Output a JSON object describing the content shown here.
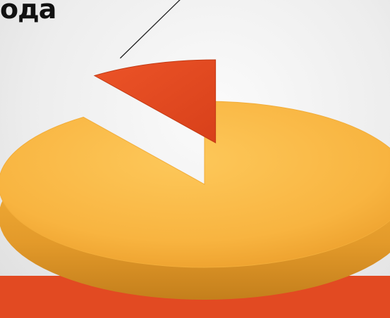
{
  "slide": {
    "title_fragment": "ода",
    "band_color": "#e24a22"
  },
  "chart_data": {
    "type": "pie",
    "style": "3d-exploded",
    "title": "",
    "slices": [
      {
        "value": 90,
        "color": "#f8b440"
      },
      {
        "value": 10,
        "color": "#e0461e",
        "exploded": true
      }
    ],
    "legend": "none",
    "leader_line": true
  }
}
